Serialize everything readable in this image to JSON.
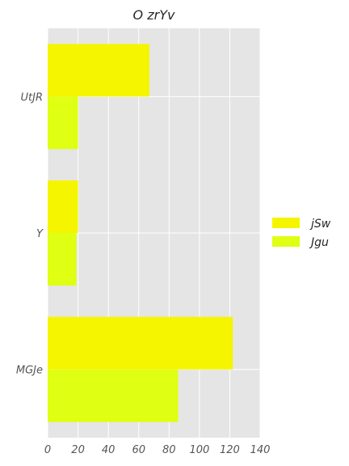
{
  "chart_data": {
    "type": "bar",
    "orientation": "horizontal",
    "title": "O zrYv",
    "xlabel": "",
    "ylabel": "",
    "categories": [
      "UtJR",
      "Y",
      "MGJe"
    ],
    "series": [
      {
        "name": "jSw",
        "values": [
          67,
          20,
          122
        ],
        "color": "#f5f500"
      },
      {
        "name": "Jgu",
        "values": [
          20,
          19,
          86
        ],
        "color": "#dfff13"
      }
    ],
    "xlim": [
      0,
      140
    ],
    "xticks": [
      0,
      20,
      40,
      60,
      80,
      100,
      120,
      140
    ],
    "grid": true,
    "legend_position": "right",
    "background_color": "#e5e5e5",
    "grid_color": "#ffffff"
  }
}
